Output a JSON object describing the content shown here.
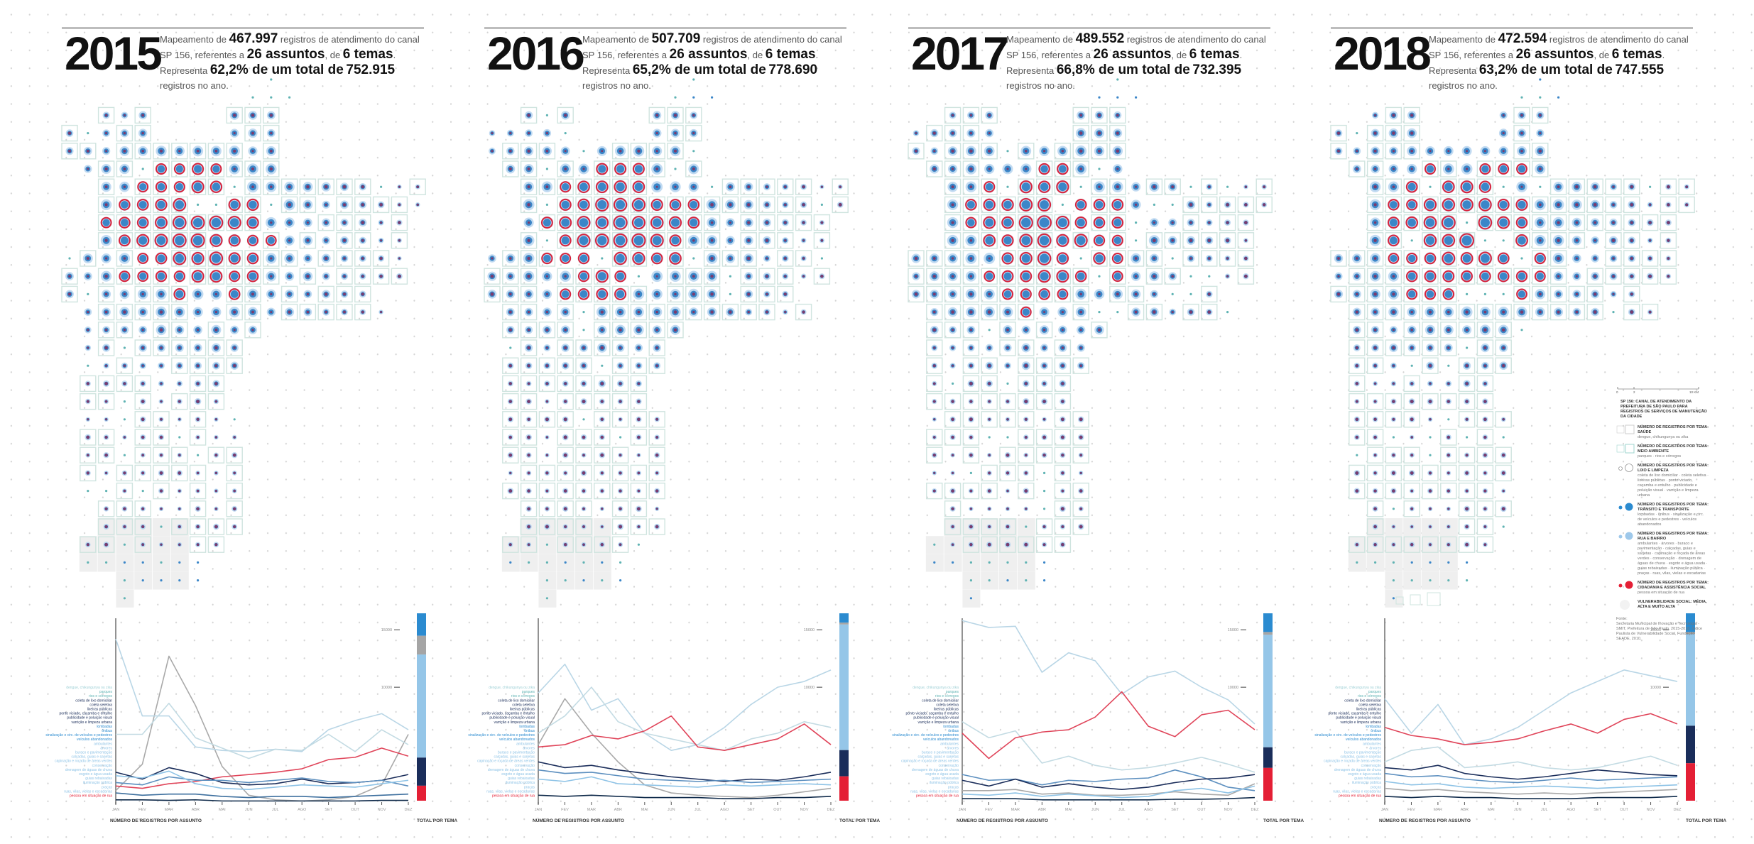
{
  "text": {
    "intro": "Mapeamento de",
    "mid": "registros de atendimento do canal SP 156, referentes",
    "a": "a",
    "de": ", de",
    "rep": ". Representa",
    "end": "registros no ano.",
    "x_title": "NÚMERO DE REGISTROS POR ASSUNTO",
    "bar_title": "TOTAL POR TEMA"
  },
  "panels": [
    {
      "year": "2015",
      "records": "467.997",
      "subjects": "26 assuntos",
      "themes": "6 temas",
      "pct": "62,2% de um total de",
      "total": "752.915"
    },
    {
      "year": "2016",
      "records": "507.709",
      "subjects": "26 assuntos",
      "themes": "6 temas",
      "pct": "65,2% de um total de",
      "total": "778.690"
    },
    {
      "year": "2017",
      "records": "489.552",
      "subjects": "26 assuntos",
      "themes": "6 temas",
      "pct": "66,8% de um total de",
      "total": "732.395"
    },
    {
      "year": "2018",
      "records": "472.594",
      "subjects": "26 assuntos",
      "themes": "6 temas",
      "pct": "63,2% de um total de",
      "total": "747.555"
    }
  ],
  "colors": {
    "transito": "#2b8bd0",
    "lixo": "#a5a5a5",
    "rua": "#95c6e8",
    "navy": "#1a2d5a",
    "cidadania": "#e41f35",
    "map_box": "#cfe4df",
    "map_halo": "#b6d4ef",
    "map_core": "#3b86c8",
    "map_center": "#7a3b6e"
  },
  "subjects": [
    {
      "label": "dengue, chikungunya ou zika",
      "color": "#9fd0d6"
    },
    {
      "label": "parques",
      "color": "#5fb3b3"
    },
    {
      "label": "rios e córregos",
      "color": "#5fb3b3"
    },
    {
      "label": "coleta de lixo domiciliar",
      "color": "#1a2d5a"
    },
    {
      "label": "coleta seletiva",
      "color": "#1a2d5a"
    },
    {
      "label": "lixeiras públicas",
      "color": "#1a2d5a"
    },
    {
      "label": "ponto viciado, caçamba e entulho",
      "color": "#1a2d5a"
    },
    {
      "label": "publicidade e poluição visual",
      "color": "#1a2d5a"
    },
    {
      "label": "varrição e limpeza urbana",
      "color": "#1a2d5a"
    },
    {
      "label": "lombadas",
      "color": "#2b8bd0"
    },
    {
      "label": "ônibus",
      "color": "#2b8bd0"
    },
    {
      "label": "sinalização e circ. de veículos e pedestres",
      "color": "#2b8bd0"
    },
    {
      "label": "veículos abandonados",
      "color": "#2b8bd0"
    },
    {
      "label": "ambulantes",
      "color": "#8ec3e6"
    },
    {
      "label": "árvores",
      "color": "#8ec3e6"
    },
    {
      "label": "buraco e pavimentação",
      "color": "#8ec3e6"
    },
    {
      "label": "calçadas, guias e sarjetas",
      "color": "#8ec3e6"
    },
    {
      "label": "capinação e roçada de áreas verdes",
      "color": "#8ec3e6"
    },
    {
      "label": "conservação",
      "color": "#8ec3e6"
    },
    {
      "label": "drenagem de águas de chuva",
      "color": "#8ec3e6"
    },
    {
      "label": "esgoto e água usada",
      "color": "#8ec3e6"
    },
    {
      "label": "guias rebaixadas",
      "color": "#8ec3e6"
    },
    {
      "label": "iluminação pública",
      "color": "#8ec3e6"
    },
    {
      "label": "praças",
      "color": "#8ec3e6"
    },
    {
      "label": "ruas, vilas, vielas e escadarias",
      "color": "#8ec3e6"
    },
    {
      "label": "pessoa em situação de rua",
      "color": "#e41f35"
    }
  ],
  "chart_data": [
    {
      "type": "line",
      "year": "2015",
      "x": [
        "JAN",
        "FEV",
        "MAR",
        "ABR",
        "MAI",
        "JUN",
        "JUL",
        "AGO",
        "SET",
        "OUT",
        "NOV",
        "DEZ"
      ],
      "ylim": [
        0,
        16000
      ],
      "yticks": [
        10000,
        15000
      ],
      "series": [
        {
          "color": "#a9a9a9",
          "values": [
            1000,
            3300,
            12700,
            8400,
            3100,
            600,
            200,
            100,
            200,
            500,
            1500,
            5900
          ]
        },
        {
          "color": "#b9d6e6",
          "values": [
            14200,
            7500,
            7500,
            4800,
            4500,
            4400,
            4600,
            4400,
            6300,
            7100,
            7700,
            6300
          ]
        },
        {
          "color": "#c3dbe3",
          "values": [
            5900,
            5900,
            8600,
            5600,
            4700,
            3800,
            4600,
            4500,
            5900,
            4400,
            6300,
            5000
          ]
        },
        {
          "color": "#e0455a",
          "values": [
            1400,
            1200,
            1600,
            1800,
            2200,
            2400,
            2600,
            2900,
            3700,
            3900,
            4700,
            4000
          ]
        },
        {
          "color": "#1a2d5a",
          "values": [
            2600,
            2000,
            3000,
            2500,
            1700,
            1500,
            1600,
            2000,
            1600,
            1700,
            1900,
            2400
          ]
        },
        {
          "color": "#5c8fbf",
          "values": [
            1700,
            1500,
            2200,
            1900,
            1900,
            1700,
            1900,
            2100,
            1800,
            1700,
            1900,
            1400
          ]
        },
        {
          "color": "#8ec3e6",
          "values": [
            2300,
            2100,
            2700,
            1600,
            1200,
            1100,
            1300,
            1500,
            1400,
            1300,
            1600,
            1900
          ]
        },
        {
          "color": "#3d6f9e",
          "values": [
            800,
            600,
            700,
            700,
            500,
            400,
            500,
            500,
            400,
            500,
            600,
            700
          ]
        },
        {
          "color": "#0f2a4a",
          "values": [
            200,
            200,
            150,
            200,
            100,
            100,
            100,
            100,
            100,
            100,
            150,
            150
          ]
        }
      ],
      "totals": [
        {
          "color": "#2b8bd0",
          "value": 12
        },
        {
          "color": "#a5a5a5",
          "value": 10
        },
        {
          "color": "#95c6e8",
          "value": 55
        },
        {
          "color": "#1a2d5a",
          "value": 15
        },
        {
          "color": "#e41f35",
          "value": 8
        }
      ]
    },
    {
      "type": "line",
      "year": "2016",
      "x": [
        "JAN",
        "FEV",
        "MAR",
        "ABR",
        "MAI",
        "JUN",
        "JUL",
        "AGO",
        "SET",
        "OUT",
        "NOV",
        "DEZ"
      ],
      "ylim": [
        0,
        16000
      ],
      "yticks": [
        10000,
        15000
      ],
      "series": [
        {
          "color": "#b9d6e6",
          "values": [
            9500,
            12000,
            8000,
            9000,
            6000,
            4500,
            5000,
            6500,
            8500,
            10000,
            10500,
            11500
          ]
        },
        {
          "color": "#a9a9a9",
          "values": [
            5000,
            9000,
            6000,
            3500,
            1500,
            800,
            600,
            500,
            400,
            600,
            900,
            1200
          ]
        },
        {
          "color": "#c3dbe3",
          "values": [
            6000,
            7500,
            10000,
            7000,
            6000,
            5500,
            5000,
            4500,
            5500,
            6000,
            7000,
            6500
          ]
        },
        {
          "color": "#e0455a",
          "values": [
            4800,
            5000,
            5800,
            5500,
            6200,
            7500,
            4800,
            4500,
            5000,
            5500,
            6800,
            5000
          ]
        },
        {
          "color": "#1a2d5a",
          "values": [
            3500,
            3000,
            3200,
            2800,
            2500,
            2200,
            2000,
            1800,
            2000,
            1900,
            2200,
            2600
          ]
        },
        {
          "color": "#5c8fbf",
          "values": [
            2800,
            2500,
            2600,
            2300,
            2000,
            1900,
            1800,
            1900,
            1700,
            1800,
            1900,
            2000
          ]
        },
        {
          "color": "#8ec3e6",
          "values": [
            2000,
            1800,
            2200,
            1600,
            1500,
            1400,
            1300,
            1500,
            1400,
            1500,
            1600,
            1500
          ]
        },
        {
          "color": "#0f2a4a",
          "values": [
            600,
            500,
            600,
            500,
            400,
            400,
            400,
            300,
            300,
            400,
            400,
            500
          ]
        }
      ],
      "totals": [
        {
          "color": "#2b8bd0",
          "value": 5
        },
        {
          "color": "#a5a5a5",
          "value": 1
        },
        {
          "color": "#95c6e8",
          "value": 67
        },
        {
          "color": "#1a2d5a",
          "value": 14
        },
        {
          "color": "#e41f35",
          "value": 13
        }
      ]
    },
    {
      "type": "line",
      "year": "2017",
      "x": [
        "JAN",
        "FEV",
        "MAR",
        "ABR",
        "MAI",
        "JUN",
        "JUL",
        "AGO",
        "SET",
        "OUT",
        "NOV",
        "DEZ"
      ],
      "ylim": [
        0,
        16000
      ],
      "yticks": [
        10000,
        15000
      ],
      "series": [
        {
          "color": "#b9d6e6",
          "values": [
            15800,
            15200,
            15300,
            11300,
            13000,
            12300,
            9400,
            10900,
            11400,
            10000,
            8900,
            6800
          ]
        },
        {
          "color": "#c3dbe3",
          "values": [
            7000,
            5600,
            6200,
            3400,
            4000,
            3200,
            2800,
            3000,
            3400,
            3900,
            3300,
            2600
          ]
        },
        {
          "color": "#e0455a",
          "values": [
            6000,
            3800,
            5600,
            6100,
            6300,
            7400,
            9600,
            6600,
            5700,
            7600,
            8000,
            6300
          ]
        },
        {
          "color": "#5c8fbf",
          "values": [
            2400,
            1900,
            2000,
            1500,
            1900,
            1800,
            2000,
            2100,
            2800,
            2200,
            1300,
            1000
          ]
        },
        {
          "color": "#1a2d5a",
          "values": [
            1900,
            1400,
            2000,
            1300,
            1600,
            1300,
            1100,
            1300,
            1700,
            2000,
            2100,
            2400
          ]
        },
        {
          "color": "#a9a9a9",
          "values": [
            1000,
            1000,
            1100,
            700,
            800,
            600,
            600,
            700,
            900,
            700,
            600,
            1600
          ]
        },
        {
          "color": "#8ec3e6",
          "values": [
            700,
            600,
            800,
            500,
            700,
            550,
            400,
            500,
            1000,
            1200,
            800,
            1400
          ]
        },
        {
          "color": "#0f2a4a",
          "values": [
            300,
            300,
            300,
            200,
            200,
            200,
            200,
            200,
            250,
            250,
            300,
            400
          ]
        }
      ],
      "totals": [
        {
          "color": "#2b8bd0",
          "value": 10
        },
        {
          "color": "#a5a5a5",
          "value": 1.5
        },
        {
          "color": "#95c6e8",
          "value": 60
        },
        {
          "color": "#1a2d5a",
          "value": 11
        },
        {
          "color": "#e41f35",
          "value": 17.5
        }
      ]
    },
    {
      "type": "line",
      "year": "2018",
      "x": [
        "JAN",
        "FEV",
        "MAR",
        "ABR",
        "MAI",
        "JUN",
        "JUL",
        "AGO",
        "SET",
        "OUT",
        "NOV",
        "DEZ"
      ],
      "ylim": [
        0,
        16000
      ],
      "yticks": [
        10000,
        15000
      ],
      "series": [
        {
          "color": "#b9d6e6",
          "values": [
            9000,
            6000,
            8500,
            5000,
            5500,
            6500,
            8000,
            9500,
            10500,
            11500,
            11000,
            10500
          ]
        },
        {
          "color": "#e0455a",
          "values": [
            6500,
            5800,
            5500,
            5000,
            5200,
            5500,
            6200,
            6800,
            6000,
            7200,
            7700,
            6800
          ]
        },
        {
          "color": "#c3dbe3",
          "values": [
            3500,
            4500,
            4800,
            3000,
            3200,
            3500,
            3000,
            2800,
            3000,
            3500,
            4000,
            3200
          ]
        },
        {
          "color": "#1a2d5a",
          "values": [
            3000,
            2800,
            3200,
            2500,
            2200,
            2000,
            2200,
            2500,
            2800,
            2600,
            2400,
            2300
          ]
        },
        {
          "color": "#5c8fbf",
          "values": [
            2500,
            2200,
            2300,
            2000,
            1800,
            1700,
            1900,
            2100,
            1900,
            2000,
            2100,
            2200
          ]
        },
        {
          "color": "#8ec3e6",
          "values": [
            1800,
            1500,
            1600,
            1300,
            1200,
            1300,
            1400,
            1300,
            1200,
            1300,
            1400,
            1500
          ]
        },
        {
          "color": "#a9a9a9",
          "values": [
            1200,
            1000,
            1100,
            900,
            800,
            700,
            800,
            700,
            800,
            900,
            1000,
            1100
          ]
        },
        {
          "color": "#0f2a4a",
          "values": [
            500,
            400,
            500,
            400,
            400,
            300,
            300,
            300,
            400,
            400,
            400,
            500
          ]
        }
      ],
      "totals": [
        {
          "color": "#2b8bd0",
          "value": 10
        },
        {
          "color": "#a5a5a5",
          "value": 1
        },
        {
          "color": "#95c6e8",
          "value": 49
        },
        {
          "color": "#1a2d5a",
          "value": 20
        },
        {
          "color": "#e41f35",
          "value": 20
        }
      ]
    }
  ],
  "legend": {
    "scale": [
      "0",
      "2",
      "10 KM"
    ],
    "title": "SP 156: CANAL DE ATENDIMENTO DA PREFEITURA DE SÃO PAULO PARA REGISTROS DE SERVIÇOS DE MANUTENÇÃO DA CIDADE",
    "themes": [
      {
        "title": "NÚMERO DE REGISTROS POR TEMA: SAÚDE",
        "items": "dengue, chikungunya ou zika",
        "symbol": "box-gray"
      },
      {
        "title": "NÚMERO DE REGISTROS POR TEMA: MEIO AMBIENTE",
        "items": "parques · rios e córregos",
        "symbol": "box-teal"
      },
      {
        "title": "NÚMERO DE REGISTROS POR TEMA: LIXO E LIMPEZA",
        "items": "coleta de lixo domiciliar · coleta seletiva · lixeiras públicas · ponto viciado, caçamba e entulho · publicidade e poluição visual · varrição e limpeza urbana",
        "symbol": "ring"
      },
      {
        "title": "NÚMERO DE REGISTROS POR TEMA: TRÂNSITO E TRANSPORTE",
        "items": "lombadas · ônibus · sinalização e circ. de veículos e pedestres · veículos abandonados",
        "symbol": "dot-blue"
      },
      {
        "title": "NÚMERO DE REGISTROS POR TEMA: RUA E BAIRRO",
        "items": "ambulantes · árvores · buraco e pavimentação · calçadas, guias e sarjetas · capinação e roçada de áreas verdes · conservação · drenagem de águas de chuva · esgoto e água usada · guias rebaixadas · iluminação pública · praças · ruas, vilas, vielas e escadarias",
        "symbol": "dot-light"
      },
      {
        "title": "NÚMERO DE REGISTROS POR TEMA: CIDADANIA E ASSISTÊNCIA SOCIAL",
        "items": "pessoa em situação de rua",
        "symbol": "dot-red"
      },
      {
        "title": "VULNERABILIDADE SOCIAL: MÉDIA, ALTA E MUITO ALTA",
        "items": "",
        "symbol": "blob"
      }
    ],
    "source_label": "Fonte:",
    "source": "Secretaria Municipal de Inovação e Tecnologia - SMIT, Prefeitura de São Paulo, 2015-2018. Índice Paulista de Vulnerabilidade Social, Fundação SEADE, 2010."
  }
}
